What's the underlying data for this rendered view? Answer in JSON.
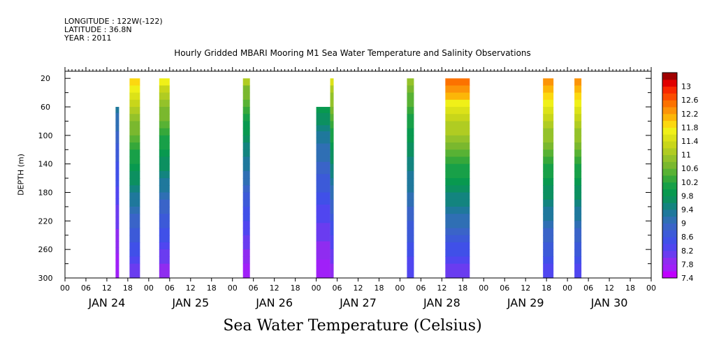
{
  "header": {
    "longitude": "LONGITUDE : 122W(-122)",
    "latitude": "LATITUDE : 36.8N",
    "year": "YEAR : 2011"
  },
  "chart_data": {
    "type": "heatmap",
    "title": "Hourly Gridded MBARI Mooring M1 Sea Water Temperature and Salinity Observations",
    "subtitle": "Sea Water Temperature (Celsius)",
    "xlabel": "",
    "ylabel": "DEPTH (m)",
    "x_hour_ticks": [
      "00",
      "06",
      "12",
      "18",
      "00",
      "06",
      "12",
      "18",
      "00",
      "06",
      "12",
      "18",
      "00",
      "06",
      "12",
      "18",
      "00",
      "06",
      "12",
      "18",
      "00",
      "06",
      "12",
      "18",
      "00",
      "06",
      "12",
      "18",
      "00"
    ],
    "x_day_labels": [
      "JAN 24",
      "JAN 25",
      "JAN 26",
      "JAN 27",
      "JAN 28",
      "JAN 29",
      "JAN 30"
    ],
    "x_range_hours": [
      0,
      168
    ],
    "y_ticks": [
      20,
      60,
      100,
      140,
      180,
      220,
      260,
      300
    ],
    "ylim": [
      300,
      10
    ],
    "colorbar": {
      "levels": [
        7.4,
        7.6,
        7.8,
        8.0,
        8.2,
        8.4,
        8.6,
        8.8,
        9.0,
        9.2,
        9.4,
        9.6,
        9.8,
        10.0,
        10.2,
        10.4,
        10.6,
        10.8,
        11.0,
        11.2,
        11.4,
        11.6,
        11.8,
        12.0,
        12.2,
        12.4,
        12.6,
        12.8,
        13.0,
        13.2
      ],
      "labels": [
        "13",
        "12.6",
        "12.2",
        "11.8",
        "11.4",
        "11",
        "10.6",
        "10.2",
        "9.8",
        "9.4",
        "9",
        "8.6",
        "8.2",
        "7.8",
        "7.4"
      ],
      "colors": [
        "#c000ff",
        "#a020f8",
        "#8f2cf0",
        "#6a3cf0",
        "#5046f0",
        "#4050e8",
        "#3c5ad8",
        "#3a64c8",
        "#2f6fb4",
        "#1f789c",
        "#13847f",
        "#0c9060",
        "#08994f",
        "#18a048",
        "#36a83a",
        "#58b234",
        "#7ab82e",
        "#94c22a",
        "#b0cc22",
        "#c8d61a",
        "#dce218",
        "#f0f018",
        "#fcd810",
        "#fcb608",
        "#fc9408",
        "#fc7200",
        "#fc4c00",
        "#f82800",
        "#e00000",
        "#a00000"
      ]
    },
    "series": [
      {
        "x_hours": [
          14.5,
          15.5
        ],
        "depth_range": [
          60,
          300
        ],
        "temp_surface": 9.4,
        "temp_bottom": 7.6
      },
      {
        "x_hours": [
          18.5,
          21.5
        ],
        "depth_range": [
          20,
          300
        ],
        "temp_surface": 12.2,
        "temp_bottom": 8.0
      },
      {
        "x_hours": [
          27,
          30
        ],
        "depth_range": [
          20,
          300
        ],
        "temp_surface": 11.8,
        "temp_bottom": 7.8
      },
      {
        "x_hours": [
          51,
          53
        ],
        "depth_range": [
          20,
          300
        ],
        "temp_surface": 11.2,
        "temp_bottom": 7.6
      },
      {
        "x_hours": [
          72,
          76
        ],
        "depth_range": [
          60,
          300
        ],
        "temp_surface": 10.0,
        "temp_bottom": 7.6
      },
      {
        "x_hours": [
          76,
          77
        ],
        "depth_range": [
          20,
          300
        ],
        "temp_surface": 11.6,
        "temp_bottom": 7.8
      },
      {
        "x_hours": [
          98,
          100
        ],
        "depth_range": [
          20,
          300
        ],
        "temp_surface": 11.0,
        "temp_bottom": 8.2
      },
      {
        "x_hours": [
          109,
          116
        ],
        "depth_range": [
          20,
          300
        ],
        "temp_surface": 12.8,
        "temp_bottom": 8.0
      },
      {
        "x_hours": [
          137,
          140
        ],
        "depth_range": [
          20,
          300
        ],
        "temp_surface": 12.6,
        "temp_bottom": 8.2
      },
      {
        "x_hours": [
          146,
          148
        ],
        "depth_range": [
          20,
          300
        ],
        "temp_surface": 12.6,
        "temp_bottom": 8.2
      }
    ]
  }
}
